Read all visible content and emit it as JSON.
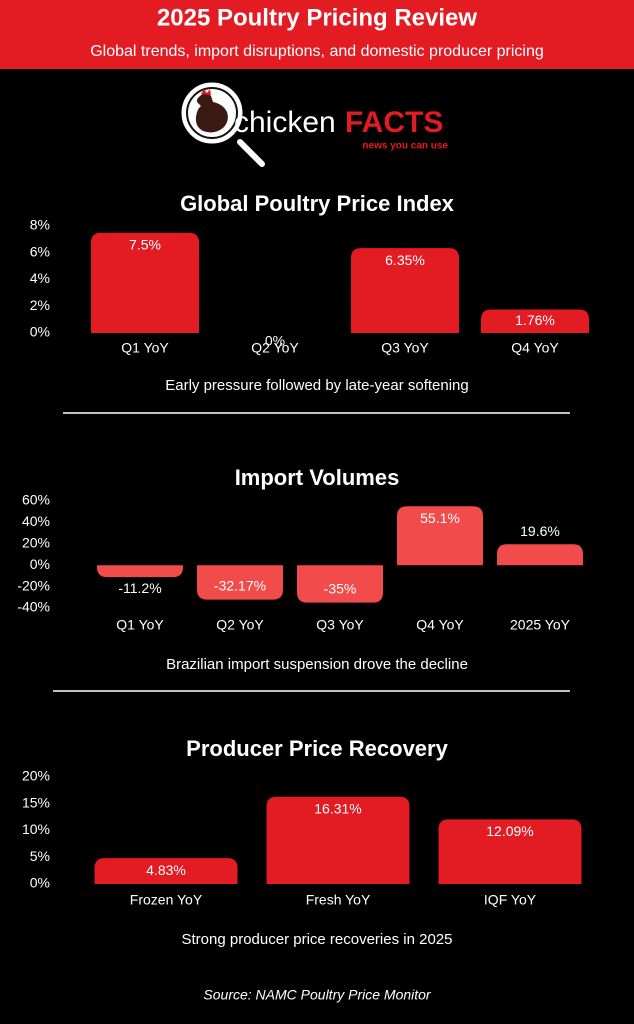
{
  "header": {
    "title": "2025 Poultry Pricing Review",
    "subtitle": "Global trends, import disruptions, and domestic producer pricing"
  },
  "logo": {
    "word": "chicken",
    "highlight": "FACTS",
    "tagline": "news you can use"
  },
  "chart_data": [
    {
      "type": "bar",
      "title": "Global Poultry Price Index",
      "caption": "Early  pressure followed by late-year softening",
      "categories": [
        "Q1 YoY",
        "Q2 YoY",
        "Q3 YoY",
        "Q4 YoY"
      ],
      "values": [
        7.5,
        0,
        6.35,
        1.76
      ],
      "value_labels": [
        "7.5%",
        "0%",
        "6.35%",
        "1.76%"
      ],
      "color": "#e31b23",
      "ylim": [
        0,
        8
      ],
      "yticks": [
        {
          "value": 0,
          "label": "0%"
        },
        {
          "value": 2,
          "label": "2%"
        },
        {
          "value": 4,
          "label": "4%"
        },
        {
          "value": 6,
          "label": "6%"
        },
        {
          "value": 8,
          "label": "8%"
        }
      ],
      "grid": false
    },
    {
      "type": "bar",
      "title": "Import Volumes",
      "caption": "Brazilian import suspension drove the decline",
      "categories": [
        "Q1 YoY",
        "Q2 YoY",
        "Q3 YoY",
        "Q4 YoY",
        "2025 YoY"
      ],
      "values": [
        -11.2,
        -32.17,
        -35,
        55.1,
        19.6
      ],
      "value_labels": [
        "-11.2%",
        "-32.17%",
        "-35%",
        "55.1%",
        "19.6%"
      ],
      "color": "#f24b4b",
      "ylim": [
        -40,
        60
      ],
      "yticks": [
        {
          "value": -40,
          "label": "-40%"
        },
        {
          "value": -20,
          "label": "-20%"
        },
        {
          "value": 0,
          "label": "0%"
        },
        {
          "value": 20,
          "label": "20%"
        },
        {
          "value": 40,
          "label": "40%"
        },
        {
          "value": 60,
          "label": "60%"
        }
      ],
      "grid": false
    },
    {
      "type": "bar",
      "title": "Producer Price Recovery",
      "caption": "Strong producer price recoveries in 2025",
      "categories": [
        "Frozen YoY",
        "Fresh YoY",
        "IQF YoY"
      ],
      "values": [
        4.83,
        16.31,
        12.09
      ],
      "value_labels": [
        "4.83%",
        "16.31%",
        "12.09%"
      ],
      "color": "#e31b23",
      "ylim": [
        0,
        20
      ],
      "yticks": [
        {
          "value": 0,
          "label": "0%"
        },
        {
          "value": 5,
          "label": "5%"
        },
        {
          "value": 10,
          "label": "10%"
        },
        {
          "value": 15,
          "label": "15%"
        },
        {
          "value": 20,
          "label": "20%"
        }
      ],
      "grid": false
    }
  ],
  "source": "Source: NAMC Poultry Price Monitor"
}
